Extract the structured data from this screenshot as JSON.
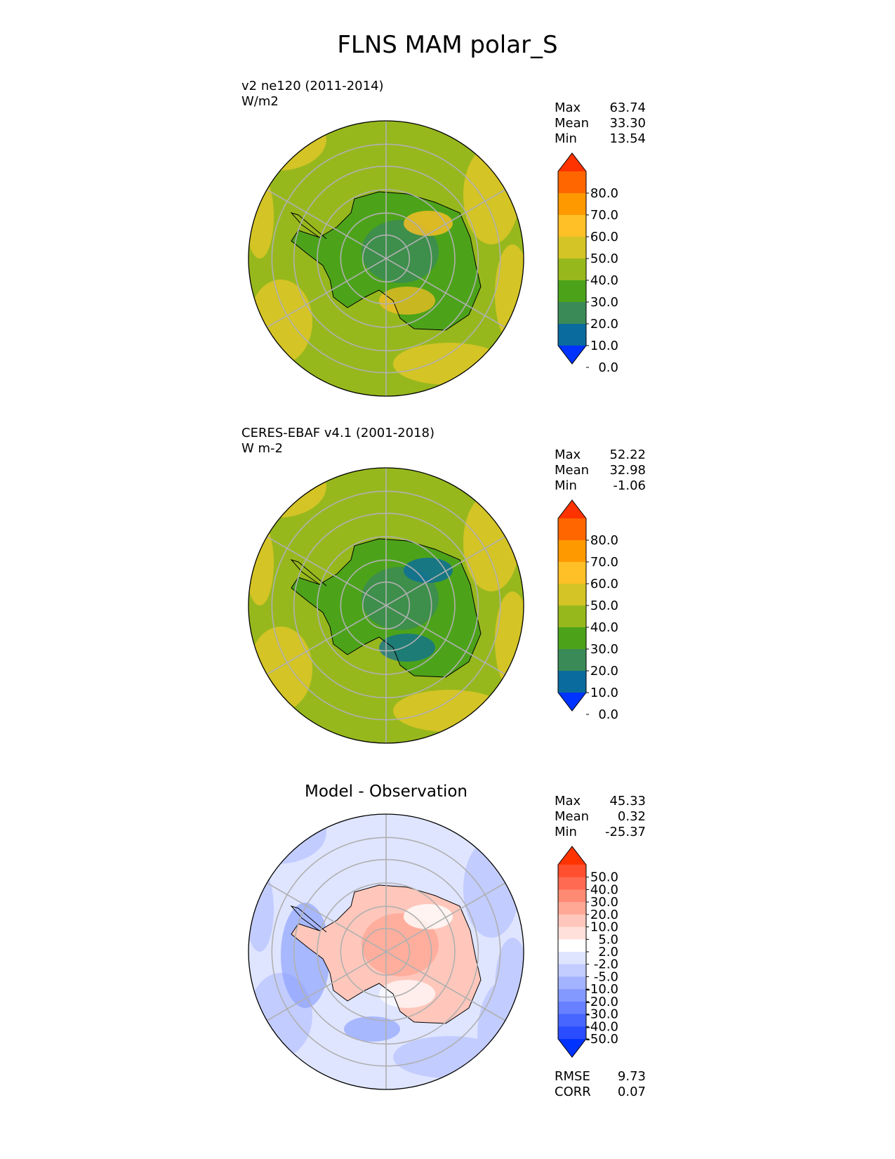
{
  "figure": {
    "title": "FLNS MAM polar_S"
  },
  "chart_data": [
    {
      "type": "heatmap",
      "projection": "south-polar-stereographic",
      "name": "test",
      "label": "v2 ne120 (2011-2014)",
      "units": "W/m2",
      "stats": [
        {
          "name": "Max",
          "value": "63.74"
        },
        {
          "name": "Mean",
          "value": "33.30"
        },
        {
          "name": "Min",
          "value": "13.54"
        }
      ],
      "colorbar": {
        "tick_labels": [
          "80.0",
          "70.0",
          "60.0",
          "50.0",
          "40.0",
          "30.0",
          "20.0",
          "10.0",
          "0.0"
        ],
        "colors_top_to_bottom": [
          "#ff3300",
          "#ff6600",
          "#ff9900",
          "#ffbf26",
          "#d4c426",
          "#97b81d",
          "#4ca31a",
          "#3a8a57",
          "#0a6b9e",
          "#0033ff"
        ]
      },
      "field_colors": {
        "ocean": "#97b81d",
        "ocean_alt": "#d4c426",
        "land_low": "#4ca31a",
        "land_mid": "#3a8a57",
        "land_warm": "#ffbf26"
      }
    },
    {
      "type": "heatmap",
      "projection": "south-polar-stereographic",
      "name": "reference",
      "label": "CERES-EBAF v4.1 (2001-2018)",
      "units": "W m-2",
      "stats": [
        {
          "name": "Max",
          "value": "52.22"
        },
        {
          "name": "Mean",
          "value": "32.98"
        },
        {
          "name": "Min",
          "value": "-1.06"
        }
      ],
      "colorbar": {
        "tick_labels": [
          "80.0",
          "70.0",
          "60.0",
          "50.0",
          "40.0",
          "30.0",
          "20.0",
          "10.0",
          "0.0"
        ],
        "colors_top_to_bottom": [
          "#ff3300",
          "#ff6600",
          "#ff9900",
          "#ffbf26",
          "#d4c426",
          "#97b81d",
          "#4ca31a",
          "#3a8a57",
          "#0a6b9e",
          "#0033ff"
        ]
      },
      "field_colors": {
        "ocean": "#97b81d",
        "ocean_alt": "#d4c426",
        "land_low": "#4ca31a",
        "land_mid": "#3a8a57",
        "land_warm": "#0a6b9e"
      }
    },
    {
      "type": "heatmap",
      "projection": "south-polar-stereographic",
      "name": "difference",
      "title": "Model - Observation",
      "stats": [
        {
          "name": "Max",
          "value": "45.33"
        },
        {
          "name": "Mean",
          "value": "0.32"
        },
        {
          "name": "Min",
          "value": "-25.37"
        }
      ],
      "colorbar": {
        "tick_labels": [
          "50.0",
          "40.0",
          "30.0",
          "20.0",
          "10.0",
          "5.0",
          "2.0",
          "-2.0",
          "-5.0",
          "-10.0",
          "-20.0",
          "-30.0",
          "-40.0",
          "-50.0"
        ],
        "colors_top_to_bottom": [
          "#ff3300",
          "#ff4f2e",
          "#ff6b52",
          "#ff8a73",
          "#ffa896",
          "#ffc7bb",
          "#ffe0db",
          "#ffffff",
          "#dfe5ff",
          "#c2ccff",
          "#a3b3ff",
          "#8499ff",
          "#6680ff",
          "#4766ff",
          "#2a4dff",
          "#0033ff"
        ]
      },
      "metrics": [
        {
          "name": "RMSE",
          "value": "9.73"
        },
        {
          "name": "CORR",
          "value": "0.07"
        }
      ],
      "field_colors": {
        "ocean": "#dfe5ff",
        "ocean_alt": "#c2ccff",
        "land_low": "#ffc7bb",
        "land_mid": "#ffa896",
        "land_warm": "#ffffff",
        "coast_neg": "#8499ff"
      }
    }
  ]
}
